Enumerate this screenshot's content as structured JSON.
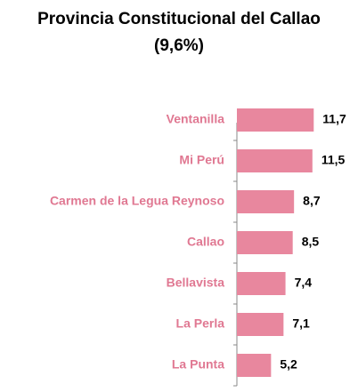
{
  "chart_data": {
    "type": "bar",
    "orientation": "horizontal",
    "title": [
      "Provincia Constitucional del Callao",
      "(9,6%)"
    ],
    "categories": [
      "Ventanilla",
      "Mi Perú",
      "Carmen de la Legua Reynoso",
      "Callao",
      "Bellavista",
      "La Perla",
      "La Punta"
    ],
    "values": [
      11.7,
      11.5,
      8.7,
      8.5,
      7.4,
      7.1,
      5.2
    ],
    "value_labels": [
      "11,7",
      "11,5",
      "8,7",
      "8,5",
      "7,4",
      "7,1",
      "5,2"
    ],
    "color": "#e8879e",
    "xlim": [
      0,
      16
    ]
  }
}
